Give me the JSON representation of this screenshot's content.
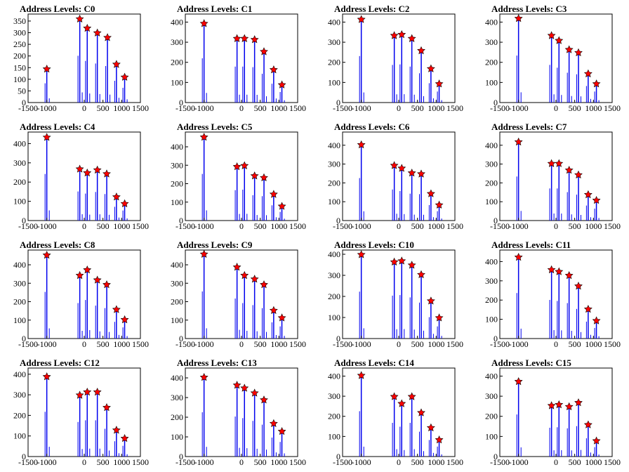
{
  "colors": {
    "histogram": "#0000ee",
    "marker": "#ff0000",
    "marker_edge": "#000000",
    "axes": "#000000"
  },
  "chart_data": [
    {
      "type": "bar",
      "title": "Address Levels: C0",
      "xlim": [
        -1500,
        1500
      ],
      "xticks": [
        "-1500",
        "-1000",
        "0",
        "500",
        "1000",
        "1500"
      ],
      "ylim": [
        0,
        380
      ],
      "yticks": [
        "0",
        "50",
        "100",
        "150",
        "200",
        "250",
        "300",
        "350"
      ],
      "peaks": [
        {
          "x": -1000,
          "y": 150
        },
        {
          "x": -120,
          "y": 365
        },
        {
          "x": 80,
          "y": 325
        },
        {
          "x": 350,
          "y": 305
        },
        {
          "x": 620,
          "y": 285
        },
        {
          "x": 860,
          "y": 170
        },
        {
          "x": 1080,
          "y": 115
        }
      ]
    },
    {
      "type": "bar",
      "title": "Address Levels: C1",
      "xlim": [
        -1500,
        1500
      ],
      "xticks": [
        "-1500",
        "-1000",
        "0",
        "500",
        "1000",
        "1500"
      ],
      "ylim": [
        0,
        440
      ],
      "yticks": [
        "0",
        "100",
        "200",
        "300",
        "400"
      ],
      "peaks": [
        {
          "x": -1000,
          "y": 400
        },
        {
          "x": -120,
          "y": 325
        },
        {
          "x": 80,
          "y": 325
        },
        {
          "x": 350,
          "y": 320
        },
        {
          "x": 600,
          "y": 260
        },
        {
          "x": 860,
          "y": 170
        },
        {
          "x": 1080,
          "y": 95
        }
      ]
    },
    {
      "type": "bar",
      "title": "Address Levels: C2",
      "xlim": [
        -1500,
        1500
      ],
      "xticks": [
        "-1500",
        "-1000",
        "0",
        "500",
        "1000",
        "1500"
      ],
      "ylim": [
        0,
        440
      ],
      "yticks": [
        "0",
        "100",
        "200",
        "300",
        "400"
      ],
      "peaks": [
        {
          "x": -1000,
          "y": 420
        },
        {
          "x": -120,
          "y": 340
        },
        {
          "x": 80,
          "y": 345
        },
        {
          "x": 350,
          "y": 325
        },
        {
          "x": 600,
          "y": 265
        },
        {
          "x": 860,
          "y": 175
        },
        {
          "x": 1080,
          "y": 100
        }
      ]
    },
    {
      "type": "bar",
      "title": "Address Levels: C3",
      "xlim": [
        -1500,
        1500
      ],
      "xticks": [
        "-1500",
        "-1000",
        "0",
        "500",
        "1000",
        "1500"
      ],
      "ylim": [
        0,
        440
      ],
      "yticks": [
        "0",
        "100",
        "200",
        "300",
        "400"
      ],
      "peaks": [
        {
          "x": -1000,
          "y": 425
        },
        {
          "x": -120,
          "y": 340
        },
        {
          "x": 80,
          "y": 315
        },
        {
          "x": 350,
          "y": 270
        },
        {
          "x": 600,
          "y": 255
        },
        {
          "x": 860,
          "y": 150
        },
        {
          "x": 1080,
          "y": 100
        }
      ]
    },
    {
      "type": "bar",
      "title": "Address Levels: C4",
      "xlim": [
        -1500,
        1500
      ],
      "xticks": [
        "-1500",
        "-1000",
        "0",
        "500",
        "1000",
        "1500"
      ],
      "ylim": [
        0,
        460
      ],
      "yticks": [
        "0",
        "100",
        "200",
        "300",
        "400"
      ],
      "peaks": [
        {
          "x": -1000,
          "y": 440
        },
        {
          "x": -120,
          "y": 275
        },
        {
          "x": 80,
          "y": 255
        },
        {
          "x": 350,
          "y": 270
        },
        {
          "x": 600,
          "y": 250
        },
        {
          "x": 860,
          "y": 130
        },
        {
          "x": 1080,
          "y": 95
        }
      ]
    },
    {
      "type": "bar",
      "title": "Address Levels: C5",
      "xlim": [
        -1500,
        1500
      ],
      "xticks": [
        "-1500",
        "-1000",
        "0",
        "500",
        "1000",
        "1500"
      ],
      "ylim": [
        0,
        480
      ],
      "yticks": [
        "0",
        "100",
        "200",
        "300",
        "400"
      ],
      "peaks": [
        {
          "x": -1000,
          "y": 460
        },
        {
          "x": -120,
          "y": 300
        },
        {
          "x": 80,
          "y": 305
        },
        {
          "x": 350,
          "y": 250
        },
        {
          "x": 600,
          "y": 240
        },
        {
          "x": 860,
          "y": 150
        },
        {
          "x": 1080,
          "y": 85
        }
      ]
    },
    {
      "type": "bar",
      "title": "Address Levels: C6",
      "xlim": [
        -1500,
        1500
      ],
      "xticks": [
        "-1500",
        "-1000",
        "0",
        "500",
        "1000",
        "1500"
      ],
      "ylim": [
        0,
        470
      ],
      "yticks": [
        "0",
        "100",
        "200",
        "300",
        "400"
      ],
      "peaks": [
        {
          "x": -1000,
          "y": 410
        },
        {
          "x": -120,
          "y": 300
        },
        {
          "x": 80,
          "y": 285
        },
        {
          "x": 350,
          "y": 260
        },
        {
          "x": 600,
          "y": 255
        },
        {
          "x": 860,
          "y": 150
        },
        {
          "x": 1080,
          "y": 90
        }
      ]
    },
    {
      "type": "bar",
      "title": "Address Levels: C7",
      "xlim": [
        -1500,
        1500
      ],
      "xticks": [
        "-1500",
        "-1000",
        "0",
        "500",
        "1000",
        "1500"
      ],
      "ylim": [
        0,
        470
      ],
      "yticks": [
        "0",
        "100",
        "200",
        "300",
        "400"
      ],
      "peaks": [
        {
          "x": -1000,
          "y": 425
        },
        {
          "x": -120,
          "y": 310
        },
        {
          "x": 80,
          "y": 310
        },
        {
          "x": 350,
          "y": 275
        },
        {
          "x": 600,
          "y": 250
        },
        {
          "x": 860,
          "y": 145
        },
        {
          "x": 1080,
          "y": 115
        }
      ]
    },
    {
      "type": "bar",
      "title": "Address Levels: C8",
      "xlim": [
        -1500,
        1500
      ],
      "xticks": [
        "-1500",
        "-1000",
        "0",
        "500",
        "1000",
        "1500"
      ],
      "ylim": [
        0,
        480
      ],
      "yticks": [
        "0",
        "100",
        "200",
        "300",
        "400"
      ],
      "peaks": [
        {
          "x": -1000,
          "y": 460
        },
        {
          "x": -120,
          "y": 350
        },
        {
          "x": 80,
          "y": 380
        },
        {
          "x": 350,
          "y": 325
        },
        {
          "x": 600,
          "y": 300
        },
        {
          "x": 860,
          "y": 165
        },
        {
          "x": 1080,
          "y": 110
        }
      ]
    },
    {
      "type": "bar",
      "title": "Address Levels: C9",
      "xlim": [
        -1500,
        1500
      ],
      "xticks": [
        "-1500",
        "-1000",
        "0",
        "500",
        "1000",
        "1500"
      ],
      "ylim": [
        0,
        480
      ],
      "yticks": [
        "0",
        "100",
        "200",
        "300",
        "400"
      ],
      "peaks": [
        {
          "x": -1000,
          "y": 465
        },
        {
          "x": -120,
          "y": 395
        },
        {
          "x": 80,
          "y": 350
        },
        {
          "x": 350,
          "y": 330
        },
        {
          "x": 600,
          "y": 300
        },
        {
          "x": 860,
          "y": 160
        },
        {
          "x": 1080,
          "y": 120
        }
      ]
    },
    {
      "type": "bar",
      "title": "Address Levels: C10",
      "xlim": [
        -1500,
        1500
      ],
      "xticks": [
        "-1500",
        "-1000",
        "0",
        "500",
        "1000",
        "1500"
      ],
      "ylim": [
        0,
        420
      ],
      "yticks": [
        "0",
        "100",
        "200",
        "300",
        "400"
      ],
      "peaks": [
        {
          "x": -1000,
          "y": 405
        },
        {
          "x": -120,
          "y": 370
        },
        {
          "x": 80,
          "y": 375
        },
        {
          "x": 350,
          "y": 355
        },
        {
          "x": 600,
          "y": 310
        },
        {
          "x": 860,
          "y": 185
        },
        {
          "x": 1080,
          "y": 105
        }
      ]
    },
    {
      "type": "bar",
      "title": "Address Levels: C11",
      "xlim": [
        -1500,
        1500
      ],
      "xticks": [
        "-1500",
        "-1000",
        "0",
        "500",
        "1000",
        "1500"
      ],
      "ylim": [
        0,
        460
      ],
      "yticks": [
        "0",
        "100",
        "200",
        "300",
        "400"
      ],
      "peaks": [
        {
          "x": -1000,
          "y": 430
        },
        {
          "x": -120,
          "y": 365
        },
        {
          "x": 80,
          "y": 355
        },
        {
          "x": 350,
          "y": 335
        },
        {
          "x": 600,
          "y": 280
        },
        {
          "x": 860,
          "y": 160
        },
        {
          "x": 1080,
          "y": 100
        }
      ]
    },
    {
      "type": "bar",
      "title": "Address Levels: C12",
      "xlim": [
        -1500,
        1500
      ],
      "xticks": [
        "-1500",
        "-1000",
        "0",
        "500",
        "1000",
        "1500"
      ],
      "ylim": [
        0,
        430
      ],
      "yticks": [
        "0",
        "100",
        "200",
        "300",
        "400"
      ],
      "peaks": [
        {
          "x": -1000,
          "y": 395
        },
        {
          "x": -120,
          "y": 305
        },
        {
          "x": 80,
          "y": 320
        },
        {
          "x": 350,
          "y": 320
        },
        {
          "x": 600,
          "y": 245
        },
        {
          "x": 860,
          "y": 135
        },
        {
          "x": 1080,
          "y": 95
        }
      ]
    },
    {
      "type": "bar",
      "title": "Address Levels: C13",
      "xlim": [
        -1500,
        1500
      ],
      "xticks": [
        "-1500",
        "-1000",
        "0",
        "500",
        "1000",
        "1500"
      ],
      "ylim": [
        0,
        450
      ],
      "yticks": [
        "0",
        "100",
        "200",
        "300",
        "400"
      ],
      "peaks": [
        {
          "x": -1000,
          "y": 410
        },
        {
          "x": -120,
          "y": 370
        },
        {
          "x": 80,
          "y": 355
        },
        {
          "x": 350,
          "y": 330
        },
        {
          "x": 600,
          "y": 295
        },
        {
          "x": 860,
          "y": 175
        },
        {
          "x": 1080,
          "y": 135
        }
      ]
    },
    {
      "type": "bar",
      "title": "Address Levels: C14",
      "xlim": [
        -1500,
        1500
      ],
      "xticks": [
        "-1500",
        "-1000",
        "0",
        "500",
        "1000",
        "1500"
      ],
      "ylim": [
        0,
        440
      ],
      "yticks": [
        "0",
        "100",
        "200",
        "300",
        "400"
      ],
      "peaks": [
        {
          "x": -1000,
          "y": 410
        },
        {
          "x": -120,
          "y": 305
        },
        {
          "x": 80,
          "y": 270
        },
        {
          "x": 350,
          "y": 305
        },
        {
          "x": 600,
          "y": 225
        },
        {
          "x": 860,
          "y": 150
        },
        {
          "x": 1080,
          "y": 90
        }
      ]
    },
    {
      "type": "bar",
      "title": "Address Levels: C15",
      "xlim": [
        -1500,
        1500
      ],
      "xticks": [
        "-1500",
        "-1000",
        "0",
        "500",
        "1000",
        "1500"
      ],
      "ylim": [
        0,
        440
      ],
      "yticks": [
        "0",
        "100",
        "200",
        "300",
        "400"
      ],
      "peaks": [
        {
          "x": -1000,
          "y": 380
        },
        {
          "x": -120,
          "y": 260
        },
        {
          "x": 80,
          "y": 265
        },
        {
          "x": 350,
          "y": 255
        },
        {
          "x": 600,
          "y": 275
        },
        {
          "x": 860,
          "y": 165
        },
        {
          "x": 1080,
          "y": 85
        }
      ]
    }
  ]
}
